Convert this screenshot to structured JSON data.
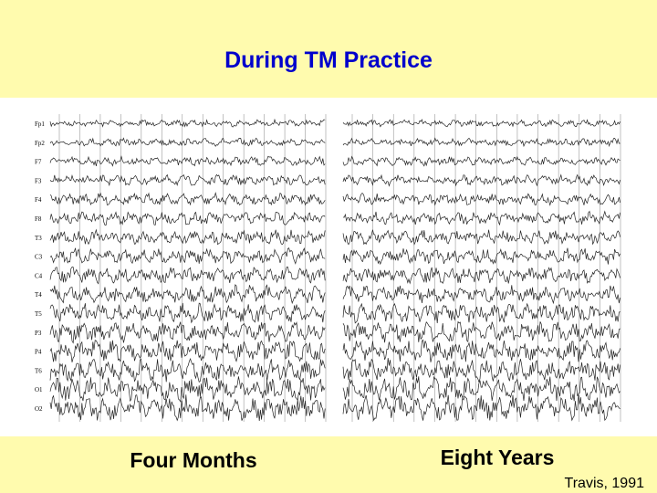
{
  "title": "During TM Practice",
  "left_label": "Four Months",
  "right_label": "Eight Years",
  "citation": "Travis, 1991",
  "channels": [
    "Fp1",
    "Fp2",
    "F7",
    "F3",
    "F4",
    "F8",
    "T3",
    "C3",
    "C4",
    "T4",
    "T5",
    "P3",
    "P4",
    "T6",
    "O1",
    "O2"
  ]
}
